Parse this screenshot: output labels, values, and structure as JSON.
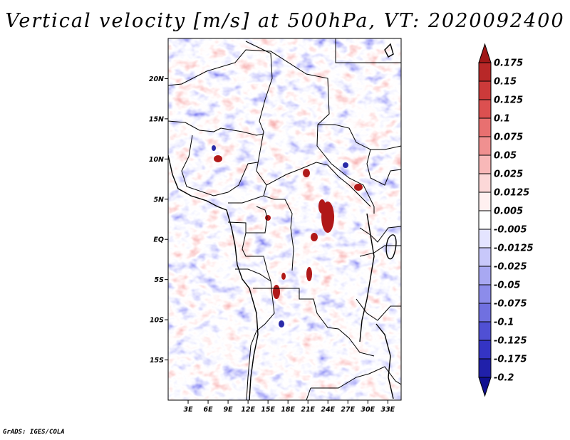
{
  "title": "Vertical velocity [m/s] at 500hPa, VT: 2020092400",
  "credit": "GrADS: IGES/COLA",
  "map": {
    "lon_range": [
      0,
      35
    ],
    "lat_range": [
      -20,
      25
    ],
    "lon_ticks": [
      "3E",
      "6E",
      "9E",
      "12E",
      "15E",
      "18E",
      "21E",
      "24E",
      "27E",
      "30E",
      "33E"
    ],
    "lat_ticks": [
      "20N",
      "15N",
      "10N",
      "5N",
      "EQ",
      "5S",
      "10S",
      "15S"
    ]
  },
  "colorbar": {
    "labels": [
      "0.175",
      "0.15",
      "0.125",
      "0.1",
      "0.075",
      "0.05",
      "0.025",
      "0.0125",
      "0.005",
      "-0.005",
      "-0.0125",
      "-0.025",
      "-0.05",
      "-0.075",
      "-0.1",
      "-0.125",
      "-0.175",
      "-0.2"
    ],
    "colors": [
      "#a01818",
      "#b82828",
      "#cc3a3a",
      "#dc5050",
      "#e87070",
      "#f09090",
      "#f8b8b8",
      "#fcd8d8",
      "#fff0f0",
      "#ffffff",
      "#e4e4ff",
      "#c8c8fa",
      "#a8a8f2",
      "#8c8cea",
      "#7070e0",
      "#5050d4",
      "#3434c4",
      "#2020aa",
      "#101090"
    ]
  }
}
